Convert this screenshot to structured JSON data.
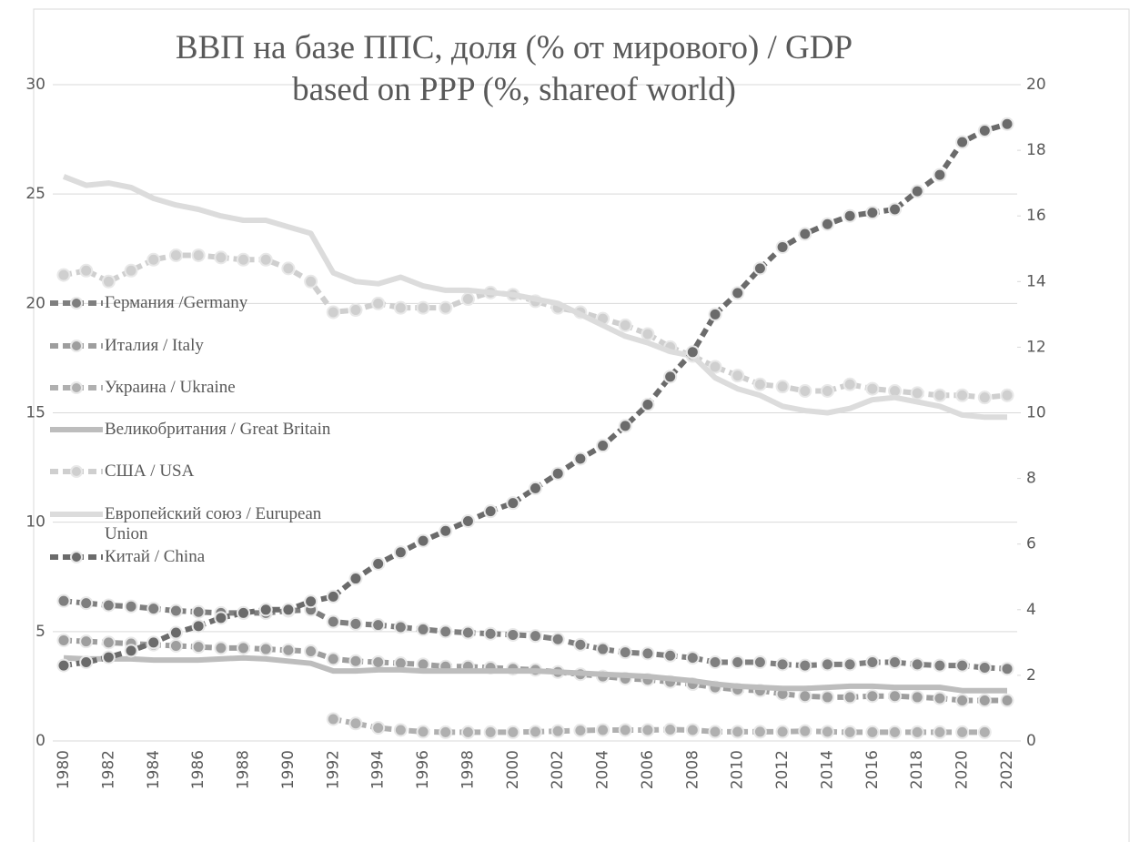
{
  "chart_data": {
    "type": "line",
    "title": "ВВП на базе ППС,  доля (% от мирового) / GDP based on PPP (%, shareof world)",
    "categories": [
      "1980",
      null,
      "1982",
      null,
      "1984",
      null,
      "1986",
      null,
      "1988",
      null,
      "1990",
      null,
      "1992",
      null,
      "1994",
      null,
      "1996",
      null,
      "1998",
      null,
      "2000",
      null,
      "2002",
      null,
      "2004",
      null,
      "2006",
      null,
      "2008",
      null,
      "2010",
      null,
      "2012",
      null,
      "2014",
      null,
      "2016",
      null,
      "2018",
      null,
      "2020",
      null,
      "2022"
    ],
    "ylim": [
      0,
      30
    ],
    "yticks": [
      0,
      5,
      10,
      15,
      20,
      25,
      30
    ],
    "y2lim": [
      0,
      20
    ],
    "y2ticks": [
      0,
      2,
      4,
      6,
      8,
      10,
      12,
      14,
      16,
      18,
      20
    ],
    "grid": true,
    "legend": "left",
    "series": [
      {
        "name": "Германия /Germany",
        "color": "#7f7f7f",
        "dashed": true,
        "markers": true,
        "values": [
          6.4,
          6.3,
          6.2,
          6.15,
          6.05,
          5.95,
          5.9,
          5.85,
          5.85,
          5.85,
          5.95,
          6.0,
          5.45,
          5.35,
          5.3,
          5.2,
          5.1,
          5.0,
          4.95,
          4.9,
          4.85,
          4.8,
          4.65,
          4.4,
          4.2,
          4.05,
          4.0,
          3.9,
          3.8,
          3.6,
          3.6,
          3.6,
          3.5,
          3.45,
          3.5,
          3.5,
          3.6,
          3.6,
          3.5,
          3.45,
          3.45,
          3.35,
          3.3
        ]
      },
      {
        "name": "Италия / Italy",
        "color": "#9e9e9e",
        "dashed": true,
        "markers": true,
        "values": [
          4.6,
          4.55,
          4.5,
          4.45,
          4.4,
          4.35,
          4.3,
          4.25,
          4.25,
          4.2,
          4.15,
          4.1,
          3.75,
          3.65,
          3.6,
          3.55,
          3.5,
          3.4,
          3.4,
          3.35,
          3.3,
          3.25,
          3.15,
          3.05,
          2.95,
          2.85,
          2.8,
          2.7,
          2.6,
          2.45,
          2.35,
          2.3,
          2.15,
          2.05,
          2.0,
          2.0,
          2.05,
          2.05,
          2.0,
          1.95,
          1.85,
          1.85,
          1.85
        ]
      },
      {
        "name": "Украина / Ukraine",
        "color": "#b0b0b0",
        "dashed": true,
        "markers": true,
        "values": [
          null,
          null,
          null,
          null,
          null,
          null,
          null,
          null,
          null,
          null,
          null,
          null,
          1.0,
          0.8,
          0.6,
          0.5,
          0.42,
          0.4,
          0.4,
          0.4,
          0.4,
          0.42,
          0.45,
          0.48,
          0.5,
          0.5,
          0.5,
          0.52,
          0.5,
          0.42,
          0.42,
          0.42,
          0.42,
          0.45,
          0.42,
          0.4,
          0.4,
          0.4,
          0.4,
          0.4,
          0.4,
          0.4,
          null
        ]
      },
      {
        "name": "Великобритания / Great Britain",
        "color": "#bdbdbd",
        "dashed": false,
        "markers": false,
        "values": [
          3.8,
          3.75,
          3.75,
          3.75,
          3.7,
          3.7,
          3.7,
          3.75,
          3.8,
          3.75,
          3.65,
          3.55,
          3.2,
          3.2,
          3.25,
          3.25,
          3.2,
          3.2,
          3.2,
          3.2,
          3.2,
          3.2,
          3.15,
          3.1,
          3.05,
          3.0,
          2.95,
          2.85,
          2.75,
          2.6,
          2.5,
          2.45,
          2.4,
          2.4,
          2.45,
          2.5,
          2.5,
          2.45,
          2.45,
          2.45,
          2.3,
          2.3,
          2.3
        ]
      },
      {
        "name": "США / USA",
        "color": "#cfcfcf",
        "dashed": true,
        "markers": true,
        "values": [
          21.3,
          21.5,
          21.0,
          21.5,
          22.0,
          22.2,
          22.2,
          22.1,
          22.0,
          22.0,
          21.6,
          21.0,
          19.6,
          19.7,
          20.0,
          19.8,
          19.8,
          19.8,
          20.2,
          20.5,
          20.4,
          20.1,
          19.8,
          19.6,
          19.3,
          19.0,
          18.6,
          18.0,
          17.6,
          17.1,
          16.7,
          16.3,
          16.2,
          16.0,
          16.0,
          16.3,
          16.1,
          16.0,
          15.9,
          15.8,
          15.8,
          15.7,
          15.8
        ]
      },
      {
        "name": "Европейский союз / Eurupean Union",
        "color": "#dcdcdc",
        "dashed": false,
        "markers": false,
        "values": [
          25.8,
          25.4,
          25.5,
          25.3,
          24.8,
          24.5,
          24.3,
          24.0,
          23.8,
          23.8,
          23.5,
          23.2,
          21.4,
          21.0,
          20.9,
          21.2,
          20.8,
          20.6,
          20.6,
          20.5,
          20.4,
          20.2,
          20.0,
          19.5,
          19.0,
          18.5,
          18.2,
          17.8,
          17.6,
          16.6,
          16.1,
          15.8,
          15.3,
          15.1,
          15.0,
          15.2,
          15.6,
          15.7,
          15.5,
          15.3,
          14.9,
          14.8,
          14.8
        ]
      },
      {
        "name": "Китай / China",
        "color": "#6b6b6b",
        "dashed": true,
        "markers": true,
        "axis": "y2",
        "values": [
          2.3,
          2.4,
          2.55,
          2.75,
          3.0,
          3.3,
          3.5,
          3.75,
          3.9,
          4.0,
          4.0,
          4.25,
          4.4,
          4.95,
          5.4,
          5.75,
          6.1,
          6.4,
          6.7,
          7.0,
          7.25,
          7.7,
          8.15,
          8.6,
          9.0,
          9.6,
          10.25,
          11.1,
          11.85,
          13.0,
          13.65,
          14.4,
          15.05,
          15.45,
          15.75,
          16.0,
          16.1,
          16.2,
          16.75,
          17.25,
          18.25,
          18.6,
          18.8
        ]
      }
    ]
  }
}
